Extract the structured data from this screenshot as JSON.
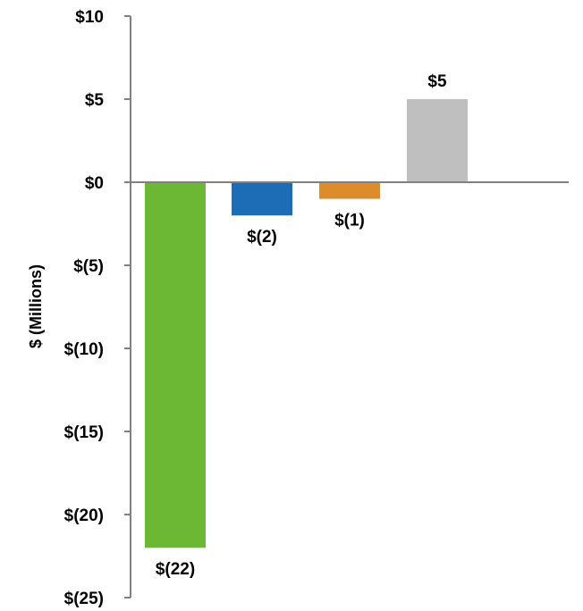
{
  "chart_data": {
    "type": "bar",
    "title": "",
    "xlabel": "",
    "ylabel": "$ (Millions)",
    "ylim": [
      -25,
      10
    ],
    "yticks": [
      10,
      5,
      0,
      -5,
      -10,
      -15,
      -20,
      -25
    ],
    "ytick_labels": [
      "$10",
      "$5",
      "$0",
      "$(5)",
      "$(10)",
      "$(15)",
      "$(20)",
      "$(25)"
    ],
    "categories": [
      "",
      "",
      "",
      ""
    ],
    "values": [
      -22,
      -2,
      -1,
      5
    ],
    "data_labels": [
      "$(22)",
      "$(2)",
      "$(1)",
      "$5"
    ],
    "colors": [
      "#6cb834",
      "#1c6db5",
      "#dc8c2a",
      "#bfbfbf"
    ],
    "grid": false,
    "legend": "none"
  }
}
